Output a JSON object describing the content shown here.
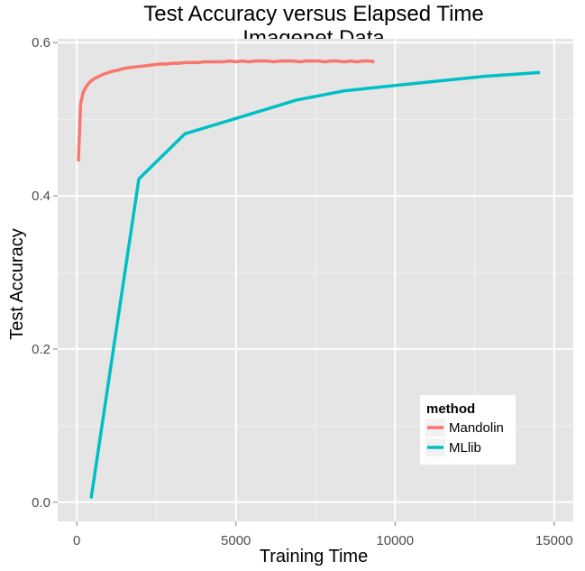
{
  "chart_data": {
    "type": "line",
    "title": "Test Accuracy versus Elapsed Time",
    "subtitle": "Imagenet Data",
    "xlabel": "Training Time",
    "ylabel": "Test Accuracy",
    "xlim": [
      -600,
      15600
    ],
    "ylim": [
      -0.025,
      0.605
    ],
    "x_ticks": [
      0,
      5000,
      10000,
      15000
    ],
    "x_tick_labels": [
      "0",
      "5000",
      "10000",
      "15000"
    ],
    "y_ticks": [
      0.0,
      0.2,
      0.4,
      0.6
    ],
    "y_tick_labels": [
      "0.0",
      "0.2",
      "0.4",
      "0.6"
    ],
    "grid": true,
    "legend": {
      "title": "method",
      "position": "bottom-right"
    },
    "series": [
      {
        "name": "Mandolin",
        "color": "#f8766d",
        "x": [
          50,
          120,
          200,
          300,
          420,
          550,
          700,
          850,
          1000,
          1150,
          1300,
          1450,
          1600,
          1800,
          2000,
          2200,
          2400,
          2600,
          2800,
          3000,
          3200,
          3400,
          3600,
          3800,
          4000,
          4200,
          4400,
          4600,
          4800,
          5000,
          5200,
          5400,
          5600,
          5800,
          6000,
          6200,
          6400,
          6600,
          6800,
          7000,
          7200,
          7400,
          7600,
          7800,
          8000,
          8200,
          8400,
          8600,
          8800,
          9000,
          9200,
          9350
        ],
        "y": [
          0.445,
          0.52,
          0.535,
          0.543,
          0.549,
          0.553,
          0.556,
          0.559,
          0.561,
          0.563,
          0.564,
          0.566,
          0.567,
          0.568,
          0.569,
          0.57,
          0.571,
          0.572,
          0.572,
          0.573,
          0.573,
          0.574,
          0.574,
          0.574,
          0.575,
          0.575,
          0.575,
          0.575,
          0.576,
          0.575,
          0.576,
          0.575,
          0.576,
          0.576,
          0.576,
          0.575,
          0.576,
          0.576,
          0.576,
          0.575,
          0.576,
          0.576,
          0.576,
          0.575,
          0.576,
          0.576,
          0.575,
          0.576,
          0.575,
          0.576,
          0.576,
          0.575
        ]
      },
      {
        "name": "MLlib",
        "color": "#00bfc4",
        "x": [
          450,
          1950,
          3400,
          5000,
          6900,
          8400,
          10000,
          12800,
          14550
        ],
        "y": [
          0.005,
          0.422,
          0.481,
          0.501,
          0.525,
          0.537,
          0.544,
          0.556,
          0.561
        ]
      }
    ]
  }
}
